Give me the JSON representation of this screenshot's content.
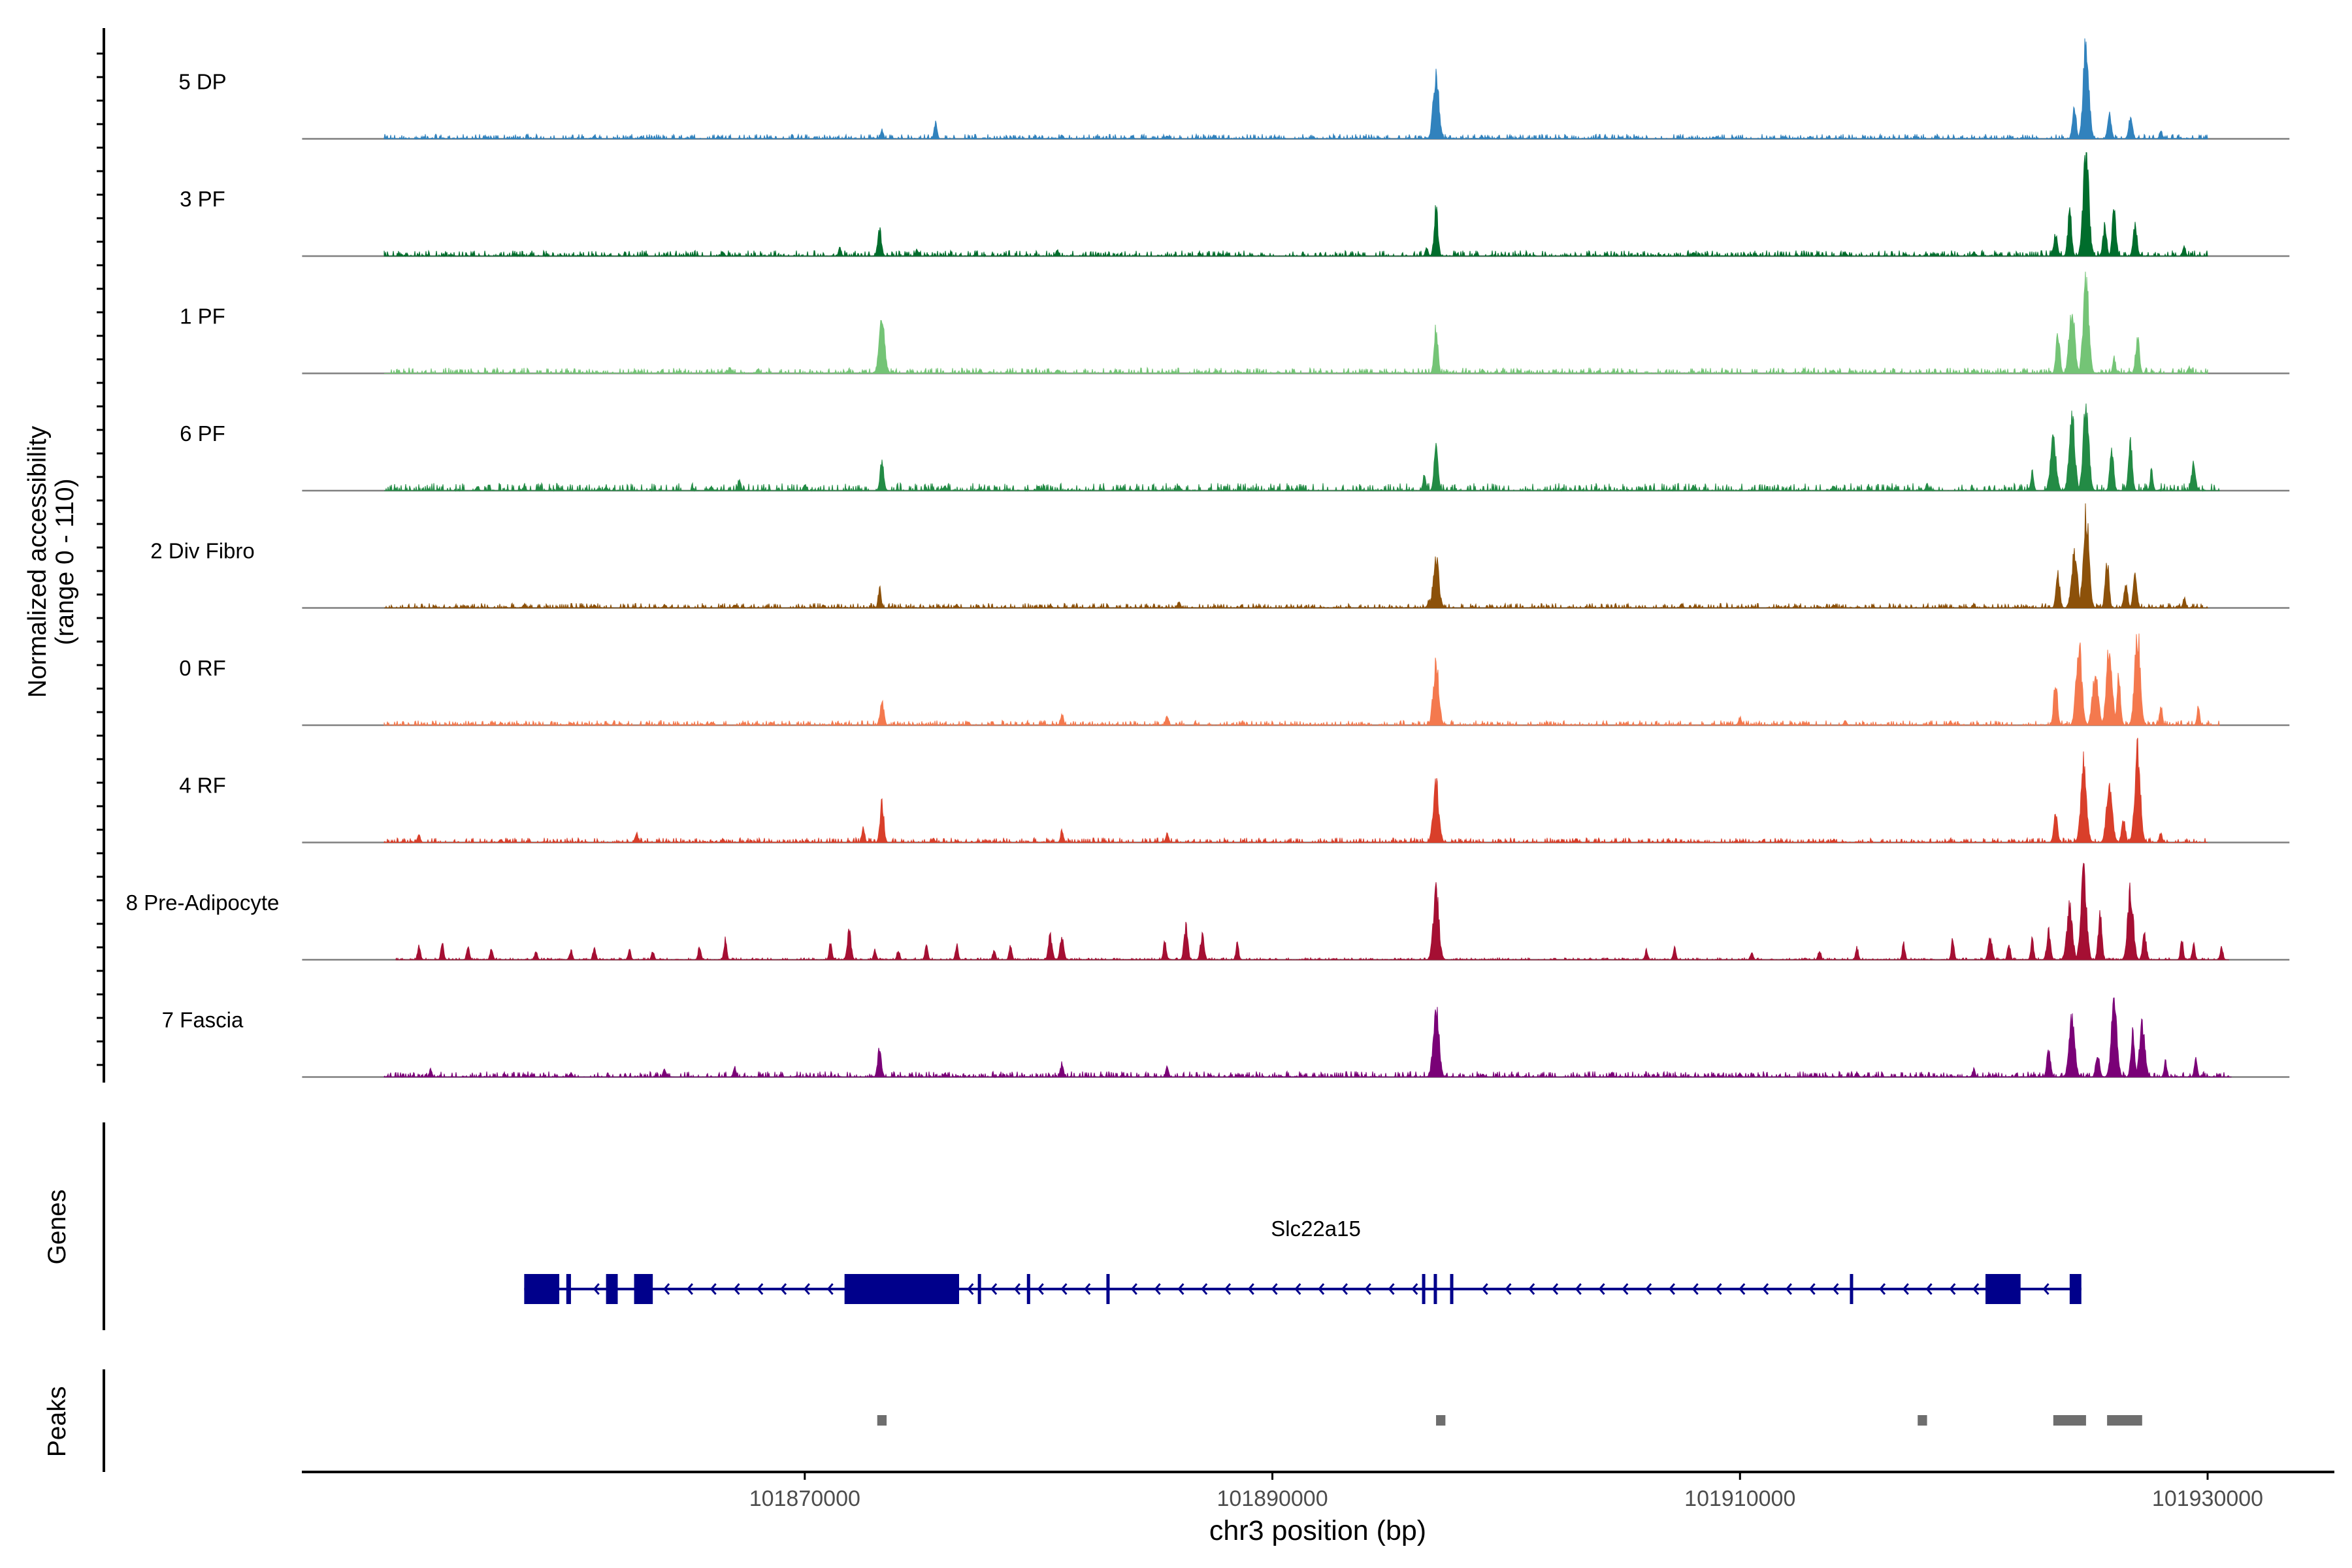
{
  "chart_data": {
    "type": "coverage-track",
    "region": {
      "chrom": "chr3",
      "start": 101848500,
      "end": 101933500
    },
    "y_label_line1": "Normalized accessibility",
    "y_label_line2": "(range 0 - 110)",
    "y_range": [
      0,
      110
    ],
    "x_label": "chr3 position (bp)",
    "x_ticks": [
      {
        "value": 101870000,
        "label": "101870000"
      },
      {
        "value": 101890000,
        "label": "101890000"
      },
      {
        "value": 101910000,
        "label": "101910000"
      },
      {
        "value": 101930000,
        "label": "101930000"
      }
    ],
    "baseline": {
      "start": 101848500,
      "end": 101933500
    },
    "tracks": [
      {
        "name": "5 DP",
        "color": "#3182bd",
        "background": {
          "start": 101852000,
          "end": 101930000,
          "level": 2.5
        },
        "peaks": [
          [
            101861000,
            4
          ],
          [
            101863000,
            3
          ],
          [
            101866300,
            4
          ],
          [
            101873300,
            12
          ],
          [
            101875600,
            22
          ],
          [
            101881000,
            5
          ],
          [
            101884000,
            4
          ],
          [
            101885500,
            4
          ],
          [
            101887500,
            5
          ],
          [
            101897000,
            82
          ],
          [
            101909000,
            3
          ],
          [
            101913000,
            3
          ],
          [
            101924300,
            38
          ],
          [
            101924800,
            118
          ],
          [
            101925800,
            30
          ],
          [
            101926700,
            28
          ],
          [
            101928000,
            10
          ]
        ]
      },
      {
        "name": "3 PF",
        "color": "#006d2c",
        "background": {
          "start": 101852000,
          "end": 101930000,
          "level": 3
        },
        "peaks": [
          [
            101866500,
            5
          ],
          [
            101871500,
            10
          ],
          [
            101873200,
            32
          ],
          [
            101874800,
            8
          ],
          [
            101880800,
            8
          ],
          [
            101896600,
            10
          ],
          [
            101897000,
            58
          ],
          [
            101908000,
            5
          ],
          [
            101914500,
            5
          ],
          [
            101920000,
            5
          ],
          [
            101923500,
            28
          ],
          [
            101924100,
            55
          ],
          [
            101924800,
            133
          ],
          [
            101925600,
            38
          ],
          [
            101926000,
            60
          ],
          [
            101926900,
            40
          ],
          [
            101929000,
            12
          ]
        ]
      },
      {
        "name": "1 PF",
        "color": "#74c476",
        "background": {
          "start": 101852000,
          "end": 101930000,
          "level": 3
        },
        "peaks": [
          [
            101866800,
            8
          ],
          [
            101868000,
            6
          ],
          [
            101873300,
            65
          ],
          [
            101877500,
            5
          ],
          [
            101880800,
            5
          ],
          [
            101897000,
            55
          ],
          [
            101899000,
            5
          ],
          [
            101914000,
            4
          ],
          [
            101920000,
            5
          ],
          [
            101923600,
            50
          ],
          [
            101924200,
            80
          ],
          [
            101924800,
            113
          ],
          [
            101926000,
            20
          ],
          [
            101927000,
            45
          ],
          [
            101929200,
            8
          ]
        ]
      },
      {
        "name": "6 PF",
        "color": "#238b45",
        "background": {
          "start": 101852000,
          "end": 101930500,
          "level": 4
        },
        "peaks": [
          [
            101856000,
            6
          ],
          [
            101858000,
            5
          ],
          [
            101861500,
            5
          ],
          [
            101866000,
            6
          ],
          [
            101867200,
            15
          ],
          [
            101870000,
            8
          ],
          [
            101873300,
            35
          ],
          [
            101876000,
            6
          ],
          [
            101880000,
            6
          ],
          [
            101886000,
            6
          ],
          [
            101896500,
            20
          ],
          [
            101897000,
            60
          ],
          [
            101908000,
            6
          ],
          [
            101914000,
            6
          ],
          [
            101918000,
            8
          ],
          [
            101922500,
            25
          ],
          [
            101923400,
            65
          ],
          [
            101924200,
            90
          ],
          [
            101924800,
            105
          ],
          [
            101925900,
            50
          ],
          [
            101926700,
            58
          ],
          [
            101927600,
            25
          ],
          [
            101929400,
            38
          ]
        ]
      },
      {
        "name": "2 Div Fibro",
        "color": "#8c510a",
        "background": {
          "start": 101852000,
          "end": 101930000,
          "level": 2.5
        },
        "peaks": [
          [
            101858000,
            4
          ],
          [
            101861000,
            4
          ],
          [
            101864000,
            4
          ],
          [
            101867000,
            4
          ],
          [
            101870800,
            4
          ],
          [
            101873200,
            25
          ],
          [
            101876500,
            4
          ],
          [
            101880500,
            4
          ],
          [
            101886000,
            8
          ],
          [
            101896700,
            10
          ],
          [
            101897000,
            62
          ],
          [
            101907500,
            5
          ],
          [
            101914000,
            4
          ],
          [
            101920000,
            5
          ],
          [
            101923600,
            40
          ],
          [
            101924300,
            70
          ],
          [
            101924800,
            118
          ],
          [
            101925700,
            60
          ],
          [
            101926500,
            30
          ],
          [
            101926900,
            40
          ],
          [
            101929000,
            12
          ]
        ]
      },
      {
        "name": "0 RF",
        "color": "#f4794e",
        "background": {
          "start": 101852000,
          "end": 101930500,
          "level": 2.5
        },
        "peaks": [
          [
            101857000,
            3
          ],
          [
            101860000,
            3
          ],
          [
            101866000,
            4
          ],
          [
            101873300,
            30
          ],
          [
            101877000,
            4
          ],
          [
            101881000,
            15
          ],
          [
            101885500,
            12
          ],
          [
            101897000,
            75
          ],
          [
            101910000,
            10
          ],
          [
            101914500,
            6
          ],
          [
            101919000,
            5
          ],
          [
            101923500,
            55
          ],
          [
            101924500,
            100
          ],
          [
            101925200,
            70
          ],
          [
            101925800,
            100
          ],
          [
            101926200,
            60
          ],
          [
            101927000,
            113
          ],
          [
            101928000,
            25
          ],
          [
            101929600,
            22
          ]
        ]
      },
      {
        "name": "4 RF",
        "color": "#d93f2a",
        "background": {
          "start": 101852000,
          "end": 101930000,
          "level": 2.5
        },
        "peaks": [
          [
            101853500,
            10
          ],
          [
            101857000,
            4
          ],
          [
            101862800,
            12
          ],
          [
            101866500,
            5
          ],
          [
            101872500,
            20
          ],
          [
            101873300,
            50
          ],
          [
            101875500,
            6
          ],
          [
            101881000,
            15
          ],
          [
            101885500,
            12
          ],
          [
            101897000,
            72
          ],
          [
            101903000,
            5
          ],
          [
            101914000,
            4
          ],
          [
            101923500,
            35
          ],
          [
            101924700,
            98
          ],
          [
            101925800,
            78
          ],
          [
            101926400,
            30
          ],
          [
            101927000,
            113
          ],
          [
            101928000,
            12
          ]
        ]
      },
      {
        "name": "8 Pre-Adipocyte",
        "color": "#a50f33",
        "background": {
          "start": 101852500,
          "end": 101930500,
          "level": 1
        },
        "peaks": [
          [
            101853500,
            18
          ],
          [
            101854500,
            22
          ],
          [
            101855600,
            18
          ],
          [
            101856600,
            15
          ],
          [
            101858500,
            10
          ],
          [
            101860000,
            12
          ],
          [
            101861000,
            16
          ],
          [
            101862500,
            12
          ],
          [
            101863500,
            10
          ],
          [
            101865500,
            18
          ],
          [
            101866600,
            25
          ],
          [
            101871100,
            20
          ],
          [
            101871900,
            35
          ],
          [
            101873000,
            12
          ],
          [
            101874000,
            12
          ],
          [
            101875200,
            20
          ],
          [
            101876500,
            18
          ],
          [
            101878100,
            12
          ],
          [
            101878800,
            18
          ],
          [
            101880500,
            30
          ],
          [
            101881000,
            28
          ],
          [
            101885400,
            25
          ],
          [
            101886300,
            40
          ],
          [
            101887000,
            30
          ],
          [
            101888500,
            20
          ],
          [
            101897000,
            85
          ],
          [
            101906000,
            12
          ],
          [
            101907200,
            15
          ],
          [
            101910500,
            10
          ],
          [
            101913400,
            12
          ],
          [
            101915000,
            15
          ],
          [
            101917000,
            20
          ],
          [
            101919100,
            25
          ],
          [
            101920700,
            30
          ],
          [
            101921500,
            20
          ],
          [
            101922500,
            25
          ],
          [
            101923200,
            35
          ],
          [
            101924100,
            65
          ],
          [
            101924700,
            110
          ],
          [
            101925400,
            55
          ],
          [
            101926700,
            85
          ],
          [
            101927300,
            30
          ],
          [
            101928900,
            25
          ],
          [
            101929400,
            20
          ],
          [
            101930600,
            15
          ]
        ]
      },
      {
        "name": "7 Fascia",
        "color": "#7a0177",
        "background": {
          "start": 101852000,
          "end": 101931000,
          "level": 3
        },
        "peaks": [
          [
            101854000,
            10
          ],
          [
            101860000,
            5
          ],
          [
            101864000,
            10
          ],
          [
            101867000,
            12
          ],
          [
            101873200,
            35
          ],
          [
            101876000,
            5
          ],
          [
            101881000,
            18
          ],
          [
            101885500,
            12
          ],
          [
            101897000,
            90
          ],
          [
            101899000,
            4
          ],
          [
            101904500,
            5
          ],
          [
            101910000,
            5
          ],
          [
            101915000,
            6
          ],
          [
            101920000,
            10
          ],
          [
            101923200,
            35
          ],
          [
            101924200,
            76
          ],
          [
            101925300,
            30
          ],
          [
            101926000,
            90
          ],
          [
            101926800,
            55
          ],
          [
            101927200,
            65
          ],
          [
            101928200,
            20
          ],
          [
            101929500,
            25
          ]
        ]
      }
    ],
    "genes": [
      {
        "name": "Slc22a15",
        "strand": "-",
        "start": 101858000,
        "end": 101924600,
        "exons": [
          [
            101858000,
            101859500
          ],
          [
            101859800,
            101860000
          ],
          [
            101861500,
            101862000
          ],
          [
            101862700,
            101863500
          ],
          [
            101871700,
            101876600
          ],
          [
            101877400,
            101877500
          ],
          [
            101879500,
            101879600
          ],
          [
            101882900,
            101883000
          ],
          [
            101896400,
            101896500
          ],
          [
            101896900,
            101897000
          ],
          [
            101897600,
            101897700
          ],
          [
            101914700,
            101914800
          ],
          [
            101920500,
            101922000
          ],
          [
            101924100,
            101924600
          ]
        ]
      }
    ],
    "genes_label": "Genes",
    "peaks_label": "Peaks",
    "peak_regions": [
      [
        101873100,
        101873500
      ],
      [
        101897000,
        101897400
      ],
      [
        101917600,
        101918000
      ],
      [
        101923400,
        101924800
      ],
      [
        101925700,
        101927200
      ]
    ]
  }
}
